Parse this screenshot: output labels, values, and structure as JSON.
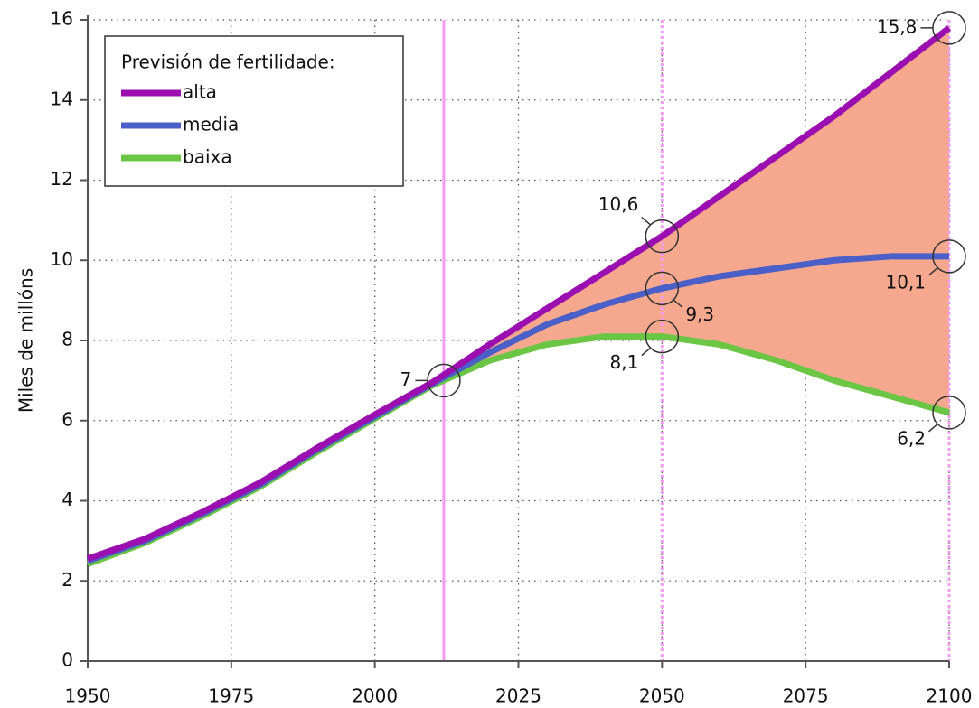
{
  "chart_data": {
    "type": "line",
    "ylabel": "Miles de millóns",
    "legend_title": "Previsión de fertilidade:",
    "legend": "upper-left",
    "grid": true,
    "x": [
      1950,
      1960,
      1970,
      1980,
      1990,
      2000,
      2010,
      2020,
      2030,
      2040,
      2050,
      2060,
      2070,
      2080,
      2090,
      2100
    ],
    "series": [
      {
        "name": "alta",
        "color": "#9b0fb0",
        "values": [
          2.55,
          3.05,
          3.72,
          4.45,
          5.32,
          6.15,
          6.95,
          7.9,
          8.8,
          9.7,
          10.6,
          11.6,
          12.6,
          13.6,
          14.7,
          15.8
        ]
      },
      {
        "name": "media",
        "color": "#4a5fc7",
        "values": [
          2.5,
          3.0,
          3.68,
          4.4,
          5.28,
          6.1,
          6.92,
          7.7,
          8.4,
          8.9,
          9.3,
          9.6,
          9.8,
          10.0,
          10.1,
          10.1
        ]
      },
      {
        "name": "baixa",
        "color": "#6cc645",
        "values": [
          2.42,
          2.95,
          3.62,
          4.35,
          5.22,
          6.05,
          6.88,
          7.5,
          7.9,
          8.1,
          8.1,
          7.9,
          7.5,
          7.0,
          6.6,
          6.2
        ]
      }
    ],
    "fill_between_color": "#f6a88f",
    "reference_lines": [
      {
        "x": 2012,
        "style": "solid",
        "color": "#f19cf0"
      },
      {
        "x": 2050,
        "style": "dotted",
        "color": "#f19cf0"
      },
      {
        "x": 2100,
        "style": "dotted",
        "color": "#f19cf0"
      }
    ],
    "annotations": [
      {
        "x": 2012,
        "y": 7,
        "label": "7",
        "anchor": "left"
      },
      {
        "x": 2050,
        "y": 10.6,
        "label": "10,6",
        "anchor": "upper-left"
      },
      {
        "x": 2050,
        "y": 9.3,
        "label": "9,3",
        "anchor": "lower-right"
      },
      {
        "x": 2050,
        "y": 8.1,
        "label": "8,1",
        "anchor": "lower-left"
      },
      {
        "x": 2100,
        "y": 15.8,
        "label": "15,8",
        "anchor": "left"
      },
      {
        "x": 2100,
        "y": 10.1,
        "label": "10,1",
        "anchor": "lower-left"
      },
      {
        "x": 2100,
        "y": 6.2,
        "label": "6,2",
        "anchor": "lower-left"
      }
    ],
    "xlim": [
      1950,
      2100
    ],
    "xticks": [
      1950,
      1975,
      2000,
      2025,
      2050,
      2075,
      2100
    ],
    "ylim": [
      0,
      16
    ],
    "yticks": [
      0,
      2,
      4,
      6,
      8,
      10,
      12,
      14,
      16
    ]
  }
}
